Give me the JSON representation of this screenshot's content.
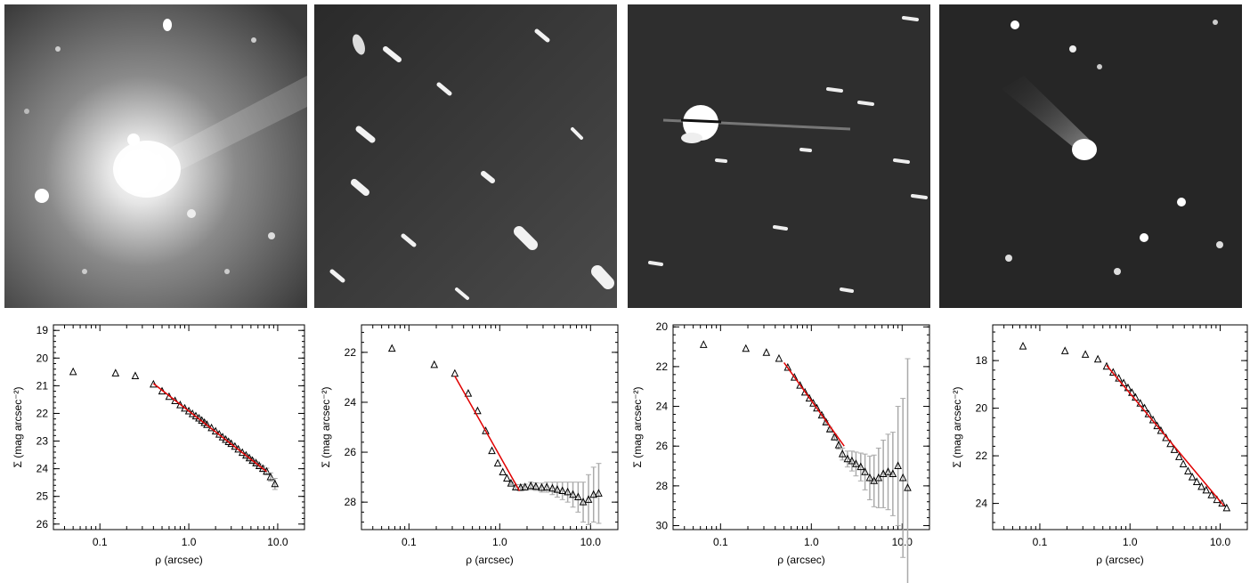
{
  "figure": {
    "panels": [
      {
        "id": "p1",
        "image": {
          "field": "star-field-coma-tail"
        }
      },
      {
        "id": "p2",
        "image": {
          "field": "trailed-stars-faint-comet"
        }
      },
      {
        "id": "p3",
        "image": {
          "field": "trailed-stars-bright-nucleus"
        }
      },
      {
        "id": "p4",
        "image": {
          "field": "comet-with-tail"
        }
      }
    ]
  },
  "chart_data": [
    {
      "type": "scatter",
      "xlabel": "ρ (arcsec)",
      "ylabel": "Σ (mag arcsec⁻²)",
      "xscale": "log",
      "xlim": [
        0.03,
        20
      ],
      "ylim": [
        26.2,
        18.8
      ],
      "yticks": [
        19,
        20,
        21,
        22,
        23,
        24,
        25,
        26
      ],
      "xticks": [
        "0.1",
        "1.0",
        "10.0"
      ],
      "series": [
        {
          "marker": "triangle",
          "x": [
            0.05,
            0.15,
            0.25,
            0.4,
            0.5,
            0.6,
            0.7,
            0.8,
            0.9,
            1.0,
            1.1,
            1.2,
            1.3,
            1.4,
            1.5,
            1.6,
            1.8,
            2.0,
            2.2,
            2.4,
            2.6,
            2.8,
            3.0,
            3.3,
            3.6,
            4.0,
            4.4,
            4.8,
            5.2,
            5.7,
            6.2,
            6.8,
            7.5,
            8.3,
            9.3
          ],
          "y": [
            20.5,
            20.55,
            20.65,
            20.95,
            21.2,
            21.4,
            21.55,
            21.7,
            21.82,
            21.92,
            22.02,
            22.1,
            22.18,
            22.26,
            22.34,
            22.41,
            22.53,
            22.65,
            22.76,
            22.86,
            22.95,
            23.03,
            23.1,
            23.2,
            23.3,
            23.42,
            23.52,
            23.62,
            23.71,
            23.8,
            23.9,
            24.0,
            24.1,
            24.3,
            24.55
          ],
          "yerr": [
            0,
            0,
            0,
            0,
            0,
            0,
            0,
            0,
            0,
            0,
            0,
            0,
            0,
            0,
            0,
            0,
            0,
            0,
            0,
            0,
            0,
            0,
            0,
            0,
            0,
            0,
            0.05,
            0.05,
            0.06,
            0.06,
            0.08,
            0.1,
            0.12,
            0.15,
            0.2
          ]
        }
      ],
      "fit": {
        "color": "#e00000",
        "x": [
          0.4,
          7.5
        ],
        "y": [
          20.92,
          24.1
        ]
      }
    },
    {
      "type": "scatter",
      "xlabel": "ρ (arcsec)",
      "ylabel": "Σ (mag arcsec⁻²)",
      "xscale": "log",
      "xlim": [
        0.03,
        20
      ],
      "ylim": [
        29.1,
        20.9
      ],
      "yticks": [
        22,
        24,
        26,
        28
      ],
      "xticks": [
        "0.1",
        "1.0",
        "10.0"
      ],
      "series": [
        {
          "marker": "triangle",
          "x": [
            0.065,
            0.19,
            0.32,
            0.45,
            0.57,
            0.7,
            0.82,
            0.95,
            1.08,
            1.2,
            1.33,
            1.5,
            1.7,
            1.9,
            2.2,
            2.5,
            2.9,
            3.3,
            3.8,
            4.3,
            4.9,
            5.6,
            6.4,
            7.3,
            8.3,
            9.5,
            10.8,
            12.3
          ],
          "y": [
            21.85,
            22.5,
            22.85,
            23.65,
            24.35,
            25.15,
            25.95,
            26.45,
            26.8,
            27.05,
            27.25,
            27.4,
            27.42,
            27.4,
            27.35,
            27.38,
            27.42,
            27.4,
            27.45,
            27.5,
            27.55,
            27.6,
            27.7,
            27.8,
            28.0,
            27.9,
            27.7,
            27.65
          ],
          "yerr": [
            0,
            0,
            0,
            0,
            0,
            0,
            0,
            0,
            0,
            0,
            0.05,
            0.1,
            0.12,
            0.12,
            0.15,
            0.15,
            0.18,
            0.2,
            0.25,
            0.3,
            0.35,
            0.4,
            0.5,
            0.6,
            0.8,
            1.0,
            1.1,
            1.2
          ]
        }
      ],
      "fit": {
        "color": "#e00000",
        "x": [
          0.32,
          1.65
        ],
        "y": [
          22.95,
          27.55
        ]
      }
    },
    {
      "type": "scatter",
      "xlabel": "ρ (arcsec)",
      "ylabel": "Σ (mag arcsec⁻²)",
      "xscale": "log",
      "xlim": [
        0.03,
        20
      ],
      "ylim": [
        30.2,
        19.9
      ],
      "yticks": [
        20,
        22,
        24,
        26,
        28,
        30
      ],
      "xticks": [
        "0.1",
        "1.0",
        "10.0"
      ],
      "series": [
        {
          "marker": "triangle",
          "x": [
            0.065,
            0.19,
            0.32,
            0.44,
            0.55,
            0.65,
            0.75,
            0.85,
            0.95,
            1.05,
            1.15,
            1.3,
            1.45,
            1.6,
            1.8,
            2.0,
            2.2,
            2.5,
            2.8,
            3.1,
            3.5,
            3.9,
            4.4,
            4.9,
            5.5,
            6.2,
            7.0,
            7.9,
            9.0,
            10.2,
            11.5
          ],
          "y": [
            20.9,
            21.1,
            21.3,
            21.6,
            22.05,
            22.55,
            22.95,
            23.3,
            23.6,
            23.85,
            24.1,
            24.45,
            24.8,
            25.15,
            25.55,
            25.95,
            26.4,
            26.65,
            26.75,
            26.9,
            27.05,
            27.3,
            27.6,
            27.75,
            27.6,
            27.4,
            27.3,
            27.4,
            27.0,
            27.6,
            28.1
          ],
          "yerr": [
            0,
            0,
            0,
            0,
            0,
            0,
            0,
            0,
            0,
            0,
            0,
            0.05,
            0.08,
            0.1,
            0.15,
            0.2,
            0.3,
            0.4,
            0.5,
            0.6,
            0.7,
            0.9,
            1.1,
            1.3,
            1.5,
            1.7,
            1.9,
            2.1,
            3.0,
            4.0,
            6.5
          ]
        }
      ],
      "fit": {
        "color": "#e00000",
        "x": [
          0.5,
          2.3
        ],
        "y": [
          21.8,
          26.0
        ]
      }
    },
    {
      "type": "scatter",
      "xlabel": "ρ (arcsec)",
      "ylabel": "Σ (mag arcsec⁻²)",
      "xscale": "log",
      "xlim": [
        0.03,
        20
      ],
      "ylim": [
        25.1,
        16.5
      ],
      "yticks": [
        18,
        20,
        22,
        24
      ],
      "xticks": [
        "0.1",
        "1.0",
        "10.0"
      ],
      "series": [
        {
          "marker": "triangle",
          "x": [
            0.065,
            0.19,
            0.32,
            0.44,
            0.55,
            0.65,
            0.75,
            0.85,
            0.95,
            1.05,
            1.15,
            1.3,
            1.45,
            1.6,
            1.8,
            2.0,
            2.2,
            2.5,
            2.8,
            3.1,
            3.5,
            3.9,
            4.4,
            4.9,
            5.5,
            6.2,
            7.0,
            8.0,
            9.2,
            10.5,
            11.8
          ],
          "y": [
            17.4,
            17.6,
            17.75,
            17.95,
            18.25,
            18.5,
            18.75,
            18.95,
            19.15,
            19.35,
            19.55,
            19.8,
            20.0,
            20.25,
            20.5,
            20.75,
            20.95,
            21.25,
            21.5,
            21.75,
            22.05,
            22.35,
            22.65,
            22.9,
            23.1,
            23.3,
            23.45,
            23.65,
            23.85,
            24.0,
            24.2
          ],
          "yerr": [
            0,
            0,
            0,
            0,
            0,
            0,
            0,
            0,
            0,
            0,
            0,
            0,
            0,
            0,
            0,
            0,
            0,
            0,
            0,
            0,
            0,
            0,
            0,
            0,
            0,
            0,
            0,
            0,
            0,
            0,
            0
          ]
        }
      ],
      "fit": {
        "color": "#e00000",
        "x": [
          0.55,
          11.0
        ],
        "y": [
          18.2,
          24.1
        ]
      }
    }
  ]
}
